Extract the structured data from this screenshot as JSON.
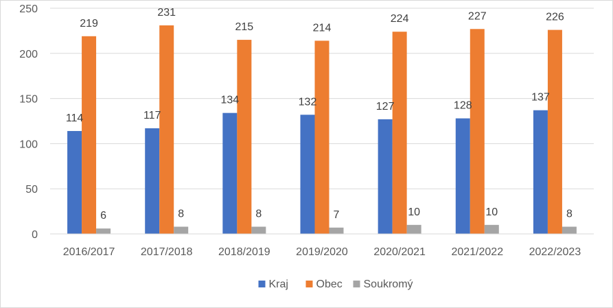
{
  "chart_data": {
    "type": "bar",
    "categories": [
      "2016/2017",
      "2017/2018",
      "2018/2019",
      "2019/2020",
      "2020/2021",
      "2021/2022",
      "2022/2023"
    ],
    "series": [
      {
        "name": "Kraj",
        "color": "#4472C4",
        "values": [
          114,
          117,
          134,
          132,
          127,
          128,
          137
        ]
      },
      {
        "name": "Obec",
        "color": "#ED7D31",
        "values": [
          219,
          231,
          215,
          214,
          224,
          227,
          226
        ]
      },
      {
        "name": "Soukromý",
        "color": "#A5A5A5",
        "values": [
          6,
          8,
          8,
          7,
          10,
          10,
          8
        ]
      }
    ],
    "ylim": [
      0,
      250
    ],
    "yticks": [
      0,
      50,
      100,
      150,
      200,
      250
    ],
    "grid": true,
    "legend_position": "bottom",
    "data_labels": true
  }
}
